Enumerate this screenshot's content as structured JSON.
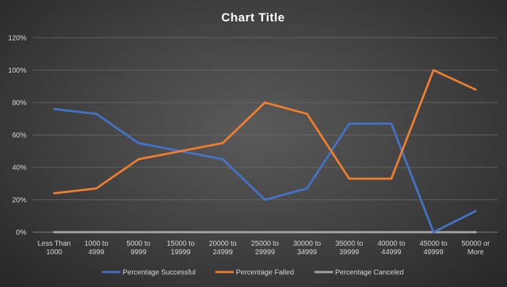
{
  "chart_data": {
    "type": "line",
    "title": "Chart Title",
    "categories": [
      [
        "Less Than",
        "1000"
      ],
      [
        "1000 to",
        "4999"
      ],
      [
        "5000 to",
        "9999"
      ],
      [
        "15000 to",
        "19999"
      ],
      [
        "20000 to",
        "24999"
      ],
      [
        "25000 to",
        "29999"
      ],
      [
        "30000 to",
        "34999"
      ],
      [
        "35000 to",
        "39999"
      ],
      [
        "40000 to",
        "44999"
      ],
      [
        "45000 to",
        "49999"
      ],
      [
        "50000 or",
        "More"
      ]
    ],
    "y_ticks": [
      "0%",
      "20%",
      "40%",
      "60%",
      "80%",
      "100%",
      "120%"
    ],
    "ylim": [
      0,
      120
    ],
    "grid": true,
    "legend_position": "bottom",
    "series": [
      {
        "name": "Percentage Successful",
        "color": "#4472c4",
        "values": [
          76,
          73,
          55,
          50,
          45,
          20,
          27,
          67,
          67,
          0,
          13
        ]
      },
      {
        "name": "Percentage Failed",
        "color": "#ed7d31",
        "values": [
          24,
          27,
          45,
          50,
          55,
          80,
          73,
          33,
          33,
          100,
          88
        ]
      },
      {
        "name": "Percentage Canceled",
        "color": "#a5a5a5",
        "values": [
          0,
          0,
          0,
          0,
          0,
          0,
          0,
          0,
          0,
          0,
          0
        ]
      }
    ]
  }
}
